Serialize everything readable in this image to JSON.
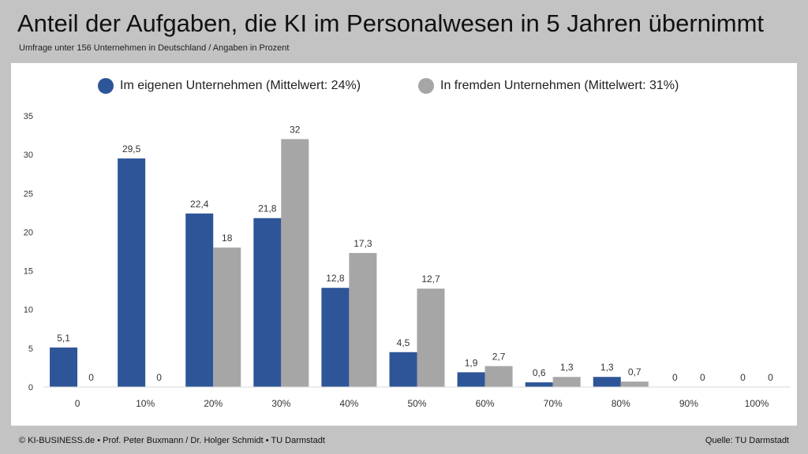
{
  "header": {
    "title": "Anteil der Aufgaben, die KI im Personalwesen in 5 Jahren übernimmt",
    "subtitle": "Umfrage unter 156 Unternehmen in Deutschland / Angaben in Prozent"
  },
  "footer": {
    "left": "© KI-BUSINESS.de • Prof. Peter Buxmann / Dr. Holger Schmidt • TU Darmstadt",
    "right": "Quelle: TU Darmstadt"
  },
  "colors": {
    "series1": "#2e5597",
    "series2": "#a6a6a6"
  },
  "chart_data": {
    "type": "bar",
    "title": "Anteil der Aufgaben, die KI im Personalwesen in 5 Jahren übernimmt",
    "subtitle": "Umfrage unter 156 Unternehmen in Deutschland / Angaben in Prozent",
    "xlabel": "",
    "ylabel": "",
    "ylim": [
      0,
      35
    ],
    "yticks": [
      0,
      5,
      10,
      15,
      20,
      25,
      30,
      35
    ],
    "categories": [
      "0",
      "10%",
      "20%",
      "30%",
      "40%",
      "50%",
      "60%",
      "70%",
      "80%",
      "90%",
      "100%"
    ],
    "grid": false,
    "legend_position": "top-center",
    "series": [
      {
        "name": "Im eigenen Unternehmen (Mittelwert: 24%)",
        "values": [
          5.1,
          29.5,
          22.4,
          21.8,
          12.8,
          4.5,
          1.9,
          0.6,
          1.3,
          0,
          0
        ],
        "labels": [
          "5,1",
          "29,5",
          "22,4",
          "21,8",
          "12,8",
          "4,5",
          "1,9",
          "0,6",
          "1,3",
          "0",
          "0"
        ]
      },
      {
        "name": "In fremden Unternehmen (Mittelwert: 31%)",
        "values": [
          0,
          0,
          18,
          32,
          17.3,
          12.7,
          2.7,
          1.3,
          0.7,
          0,
          0
        ],
        "labels": [
          "0",
          "0",
          "18",
          "32",
          "17,3",
          "12,7",
          "2,7",
          "1,3",
          "0,7",
          "0",
          "0"
        ]
      }
    ]
  }
}
